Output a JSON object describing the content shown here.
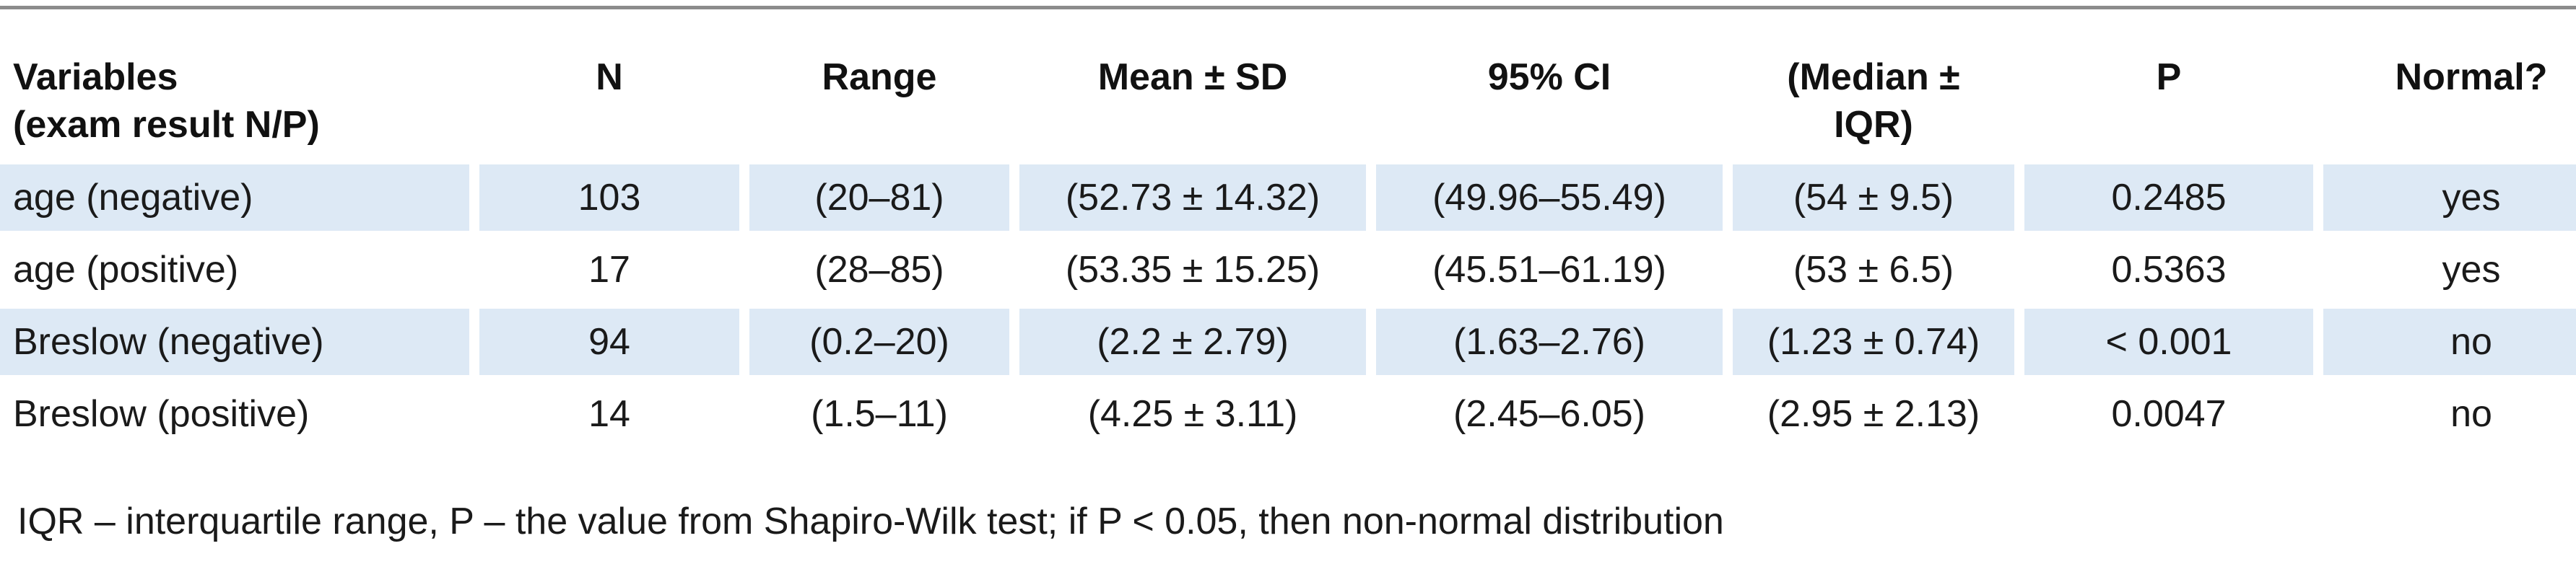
{
  "table": {
    "headers": [
      "Variables\n(exam result N/P)",
      "N",
      "Range",
      "Mean ± SD",
      "95% CI",
      "(Median ±\nIQR)",
      "P",
      "Normal?"
    ],
    "rows": [
      [
        "age (negative)",
        "103",
        "(20–81)",
        "(52.73 ± 14.32)",
        "(49.96–55.49)",
        "(54 ± 9.5)",
        "0.2485",
        "yes"
      ],
      [
        "age (positive)",
        "17",
        "(28–85)",
        "(53.35 ± 15.25)",
        "(45.51–61.19)",
        "(53 ± 6.5)",
        "0.5363",
        "yes"
      ],
      [
        "Breslow (negative)",
        "94",
        "(0.2–20)",
        "(2.2 ± 2.79)",
        "(1.63–2.76)",
        "(1.23 ± 0.74)",
        "< 0.001",
        "no"
      ],
      [
        "Breslow (positive)",
        "14",
        "(1.5–11)",
        "(4.25 ± 3.11)",
        "(2.45–6.05)",
        "(2.95 ± 2.13)",
        "0.0047",
        "no"
      ]
    ]
  },
  "footnote": "IQR – interquartile range, P – the value from Shapiro-Wilk test; if P < 0.05, then non-normal distribution",
  "colors": {
    "row_shade": "#dde9f5",
    "rule": "#8c8c8c"
  }
}
